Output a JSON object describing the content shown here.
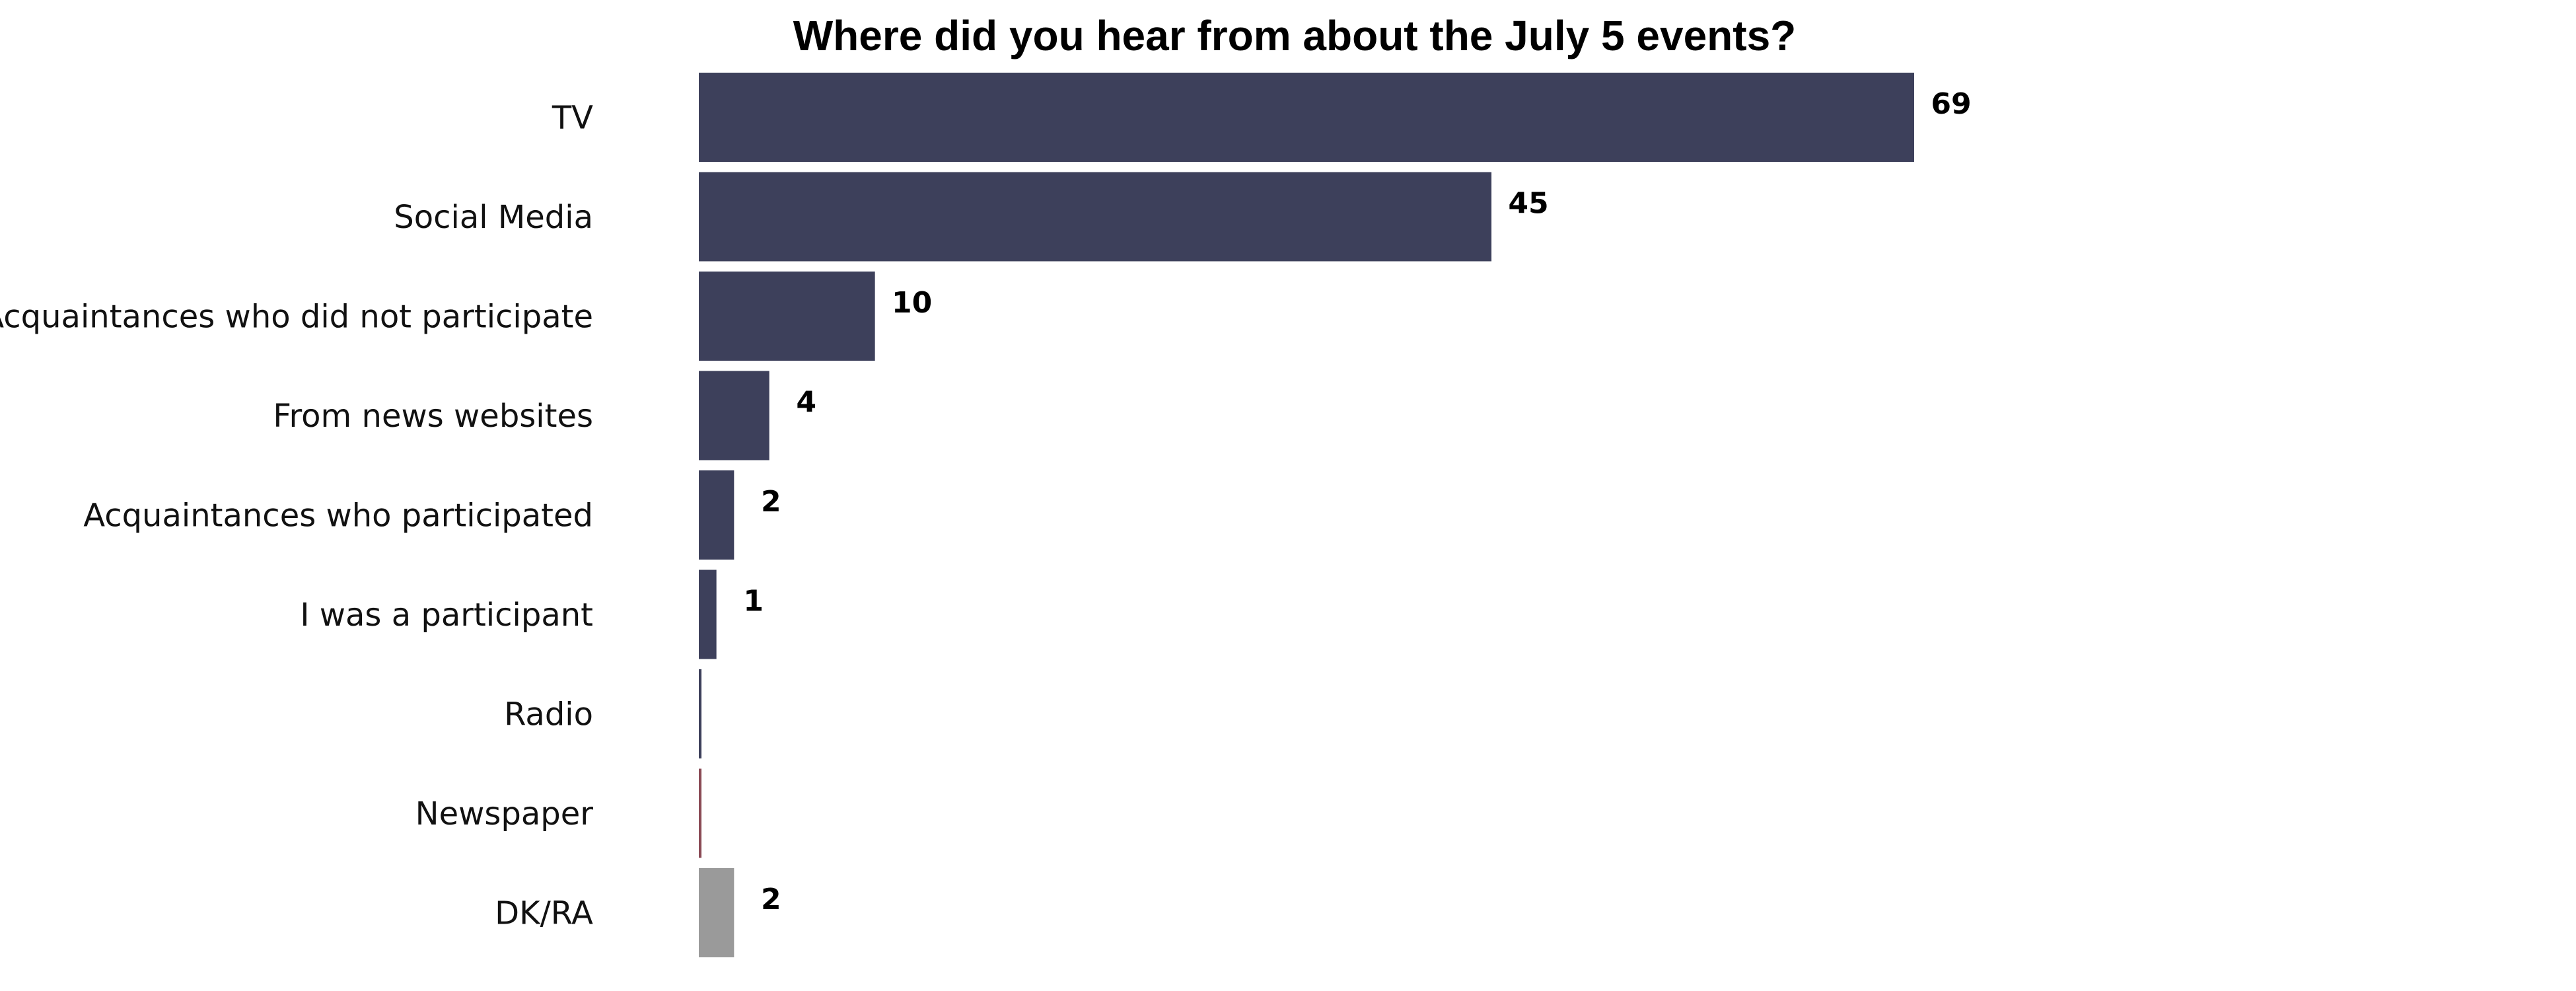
{
  "chart_data": {
    "type": "bar",
    "orientation": "horizontal",
    "title": "Where did you hear from about the July 5 events?",
    "xlabel": "",
    "ylabel": "",
    "grid": false,
    "legend": "none",
    "xlim": [
      0,
      69
    ],
    "categories": [
      "TV",
      "Social Media",
      "Acquaintances who did not participate",
      "From news websites",
      "Acquaintances who participated",
      "I was a participant",
      "Radio",
      "Newspaper",
      "DK/RA"
    ],
    "values": [
      69,
      45,
      10,
      4,
      2,
      1,
      0,
      0,
      2
    ],
    "value_labels": [
      "69",
      "45",
      "10",
      "4",
      "2",
      "1",
      "",
      "",
      "2"
    ],
    "bar_colors": [
      "#3d405b",
      "#3d405b",
      "#3d405b",
      "#3d405b",
      "#3d405b",
      "#3d405b",
      "#3d405b",
      "#8a4a55",
      "#9a9a9a"
    ]
  }
}
